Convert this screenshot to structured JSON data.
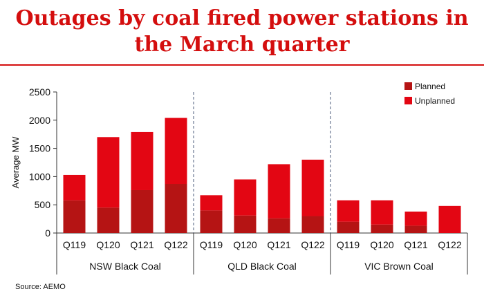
{
  "title": "Outages by coal fired power stations in the March quarter",
  "source": "Source: AEMO",
  "colors": {
    "accent": "#d40e0e",
    "planned": "#b51414",
    "unplanned": "#e30613"
  },
  "chart_data": {
    "type": "bar",
    "stacked": true,
    "title": "Outages by coal fired power stations in the March quarter",
    "ylabel": "Average MW",
    "xlabel": "",
    "ylim": [
      0,
      2500
    ],
    "yticks": [
      0,
      500,
      1000,
      1500,
      2000,
      2500
    ],
    "grid": false,
    "legend_position": "top-right",
    "groups": [
      "NSW Black Coal",
      "QLD Black Coal",
      "VIC Brown Coal"
    ],
    "categories": [
      "Q119",
      "Q120",
      "Q121",
      "Q122",
      "Q119",
      "Q120",
      "Q121",
      "Q122",
      "Q119",
      "Q120",
      "Q121",
      "Q122"
    ],
    "series": [
      {
        "name": "Planned",
        "color": "#b51414",
        "values": [
          580,
          450,
          760,
          870,
          400,
          310,
          260,
          300,
          200,
          150,
          130,
          0
        ]
      },
      {
        "name": "Unplanned",
        "color": "#e30613",
        "values": [
          450,
          1250,
          1030,
          1170,
          270,
          640,
          960,
          1000,
          380,
          430,
          250,
          480
        ]
      }
    ]
  }
}
